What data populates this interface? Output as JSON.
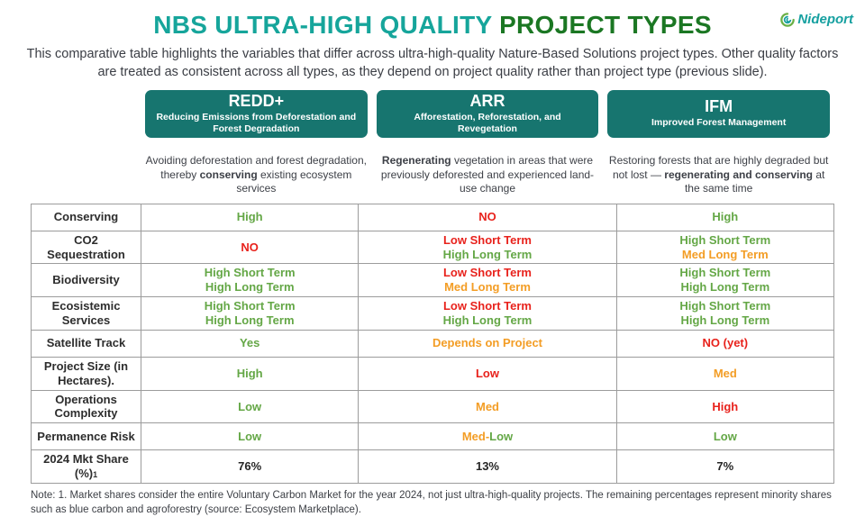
{
  "header": {
    "title_part1": "NBS ULTRA-HIGH QUALITY ",
    "title_part2": "PROJECT TYPES",
    "logo_text": "Nideport"
  },
  "subtitle": "This comparative table highlights the variables that differ across ultra-high-quality Nature-Based Solutions project types. Other quality factors are treated as consistent across all types, as they depend on project quality rather than project type (previous slide).",
  "colors": {
    "green": "#64a746",
    "red": "#e8221c",
    "orange": "#f39d25",
    "dark": "#262626",
    "teal_box": "#17756f",
    "title_teal": "#16a59b",
    "title_green": "#1b7723"
  },
  "columns": [
    {
      "code": "REDD+",
      "name": "Reducing Emissions from Deforestation and Forest Degradation",
      "description": [
        {
          "t": "Avoiding deforestation and forest degradation, thereby "
        },
        {
          "t": "conserving",
          "b": true
        },
        {
          "t": " existing ecosystem services"
        }
      ]
    },
    {
      "code": "ARR",
      "name": "Afforestation, Reforestation, and Revegetation",
      "description": [
        {
          "t": "Regenerating",
          "b": true
        },
        {
          "t": " vegetation in areas that were previously deforested and experienced land-use change"
        }
      ]
    },
    {
      "code": "IFM",
      "name": "Improved Forest Management",
      "description": [
        {
          "t": "Restoring forests that are highly degraded but not lost — "
        },
        {
          "t": "regenerating and conserving",
          "b": true
        },
        {
          "t": " at the same time"
        }
      ]
    }
  ],
  "table": {
    "rows": [
      {
        "label": "Conserving",
        "cells": [
          [
            [
              {
                "t": "High",
                "c": "green"
              }
            ]
          ],
          [
            [
              {
                "t": "NO",
                "c": "red"
              }
            ]
          ],
          [
            [
              {
                "t": "High",
                "c": "green"
              }
            ]
          ]
        ]
      },
      {
        "label": "CO2 Sequestration",
        "cells": [
          [
            [
              {
                "t": "NO",
                "c": "red"
              }
            ]
          ],
          [
            [
              {
                "t": "Low Short Term",
                "c": "red"
              }
            ],
            [
              {
                "t": "High Long Term",
                "c": "green"
              }
            ]
          ],
          [
            [
              {
                "t": "High Short Term",
                "c": "green"
              }
            ],
            [
              {
                "t": "Med Long Term",
                "c": "orange"
              }
            ]
          ]
        ]
      },
      {
        "label": "Biodiversity",
        "cells": [
          [
            [
              {
                "t": "High Short Term",
                "c": "green"
              }
            ],
            [
              {
                "t": "High Long Term",
                "c": "green"
              }
            ]
          ],
          [
            [
              {
                "t": "Low Short Term",
                "c": "red"
              }
            ],
            [
              {
                "t": "Med Long Term",
                "c": "orange"
              }
            ]
          ],
          [
            [
              {
                "t": "High Short Term",
                "c": "green"
              }
            ],
            [
              {
                "t": "High Long Term",
                "c": "green"
              }
            ]
          ]
        ]
      },
      {
        "label": "Ecosistemic Services",
        "cells": [
          [
            [
              {
                "t": "High Short Term",
                "c": "green"
              }
            ],
            [
              {
                "t": "High Long Term",
                "c": "green"
              }
            ]
          ],
          [
            [
              {
                "t": "Low Short Term",
                "c": "red"
              }
            ],
            [
              {
                "t": "High Long Term",
                "c": "green"
              }
            ]
          ],
          [
            [
              {
                "t": "High Short Term",
                "c": "green"
              }
            ],
            [
              {
                "t": "High Long Term",
                "c": "green"
              }
            ]
          ]
        ]
      },
      {
        "label": "Satellite Track",
        "cells": [
          [
            [
              {
                "t": "Yes",
                "c": "green"
              }
            ]
          ],
          [
            [
              {
                "t": "Depends on Project",
                "c": "orange"
              }
            ]
          ],
          [
            [
              {
                "t": "NO (yet)",
                "c": "red"
              }
            ]
          ]
        ]
      },
      {
        "label": "Project Size (in Hectares).",
        "cells": [
          [
            [
              {
                "t": "High",
                "c": "green"
              }
            ]
          ],
          [
            [
              {
                "t": "Low",
                "c": "red"
              }
            ]
          ],
          [
            [
              {
                "t": "Med",
                "c": "orange"
              }
            ]
          ]
        ]
      },
      {
        "label": "Operations Complexity",
        "cells": [
          [
            [
              {
                "t": "Low",
                "c": "green"
              }
            ]
          ],
          [
            [
              {
                "t": "Med",
                "c": "orange"
              }
            ]
          ],
          [
            [
              {
                "t": "High",
                "c": "red"
              }
            ]
          ]
        ]
      },
      {
        "label": "Permanence Risk",
        "cells": [
          [
            [
              {
                "t": "Low",
                "c": "green"
              }
            ]
          ],
          [
            [
              {
                "t": "Med-",
                "c": "orange"
              },
              {
                "t": "Low",
                "c": "green"
              }
            ]
          ],
          [
            [
              {
                "t": "Low",
                "c": "green"
              }
            ]
          ]
        ]
      },
      {
        "label": "2024 Mkt Share (%)",
        "label_sup": "1",
        "cells": [
          [
            [
              {
                "t": "76%",
                "c": "dark"
              }
            ]
          ],
          [
            [
              {
                "t": "13%",
                "c": "dark"
              }
            ]
          ],
          [
            [
              {
                "t": "7%",
                "c": "dark"
              }
            ]
          ]
        ]
      }
    ]
  },
  "note": "Note: 1. Market shares consider the entire Voluntary Carbon Market for the year 2024, not just ultra-high-quality projects. The remaining percentages represent minority shares such as blue carbon and agroforestry (source: Ecosystem Marketplace)."
}
